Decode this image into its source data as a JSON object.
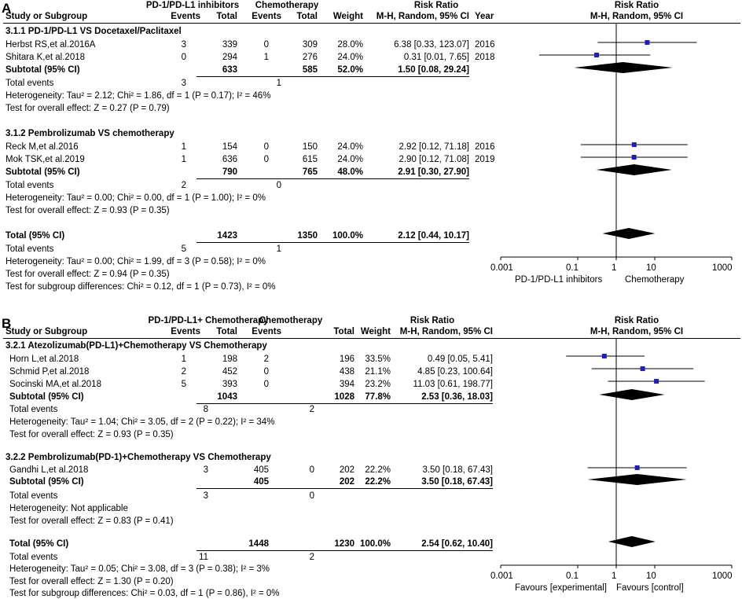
{
  "panels": [
    {
      "label": "A",
      "header": {
        "exp_group": "PD-1/PD-L1 inhibitors",
        "ctrl_group": "Chemotherapy",
        "col_study": "Study or Subgroup",
        "col_events_e": "Events",
        "col_total_e": "Total",
        "col_events_c": "Events",
        "col_total_c": "Total",
        "col_weight": "Weight",
        "rr_title": "Risk Ratio",
        "rr_method": "M-H, Random, 95% CI",
        "col_year": "Year",
        "plot_title": "Risk Ratio",
        "plot_method": "M-H, Random, 95% CI"
      },
      "subgroups": [
        {
          "title": "3.1.1 PD-1/PD-L1 VS Docetaxel/Paclitaxel",
          "studies": [
            {
              "name": "Herbst RS,et al.2016A",
              "ee": "3",
              "te": "339",
              "ec": "0",
              "tc": "309",
              "w": "28.0%",
              "ci": "6.38 [0.33, 123.07]",
              "year": "2016"
            },
            {
              "name": "Shitara K,et al.2018",
              "ee": "0",
              "te": "294",
              "ec": "1",
              "tc": "276",
              "w": "24.0%",
              "ci": "0.31 [0.01, 7.65]",
              "year": "2018"
            }
          ],
          "subtotal": {
            "label": "Subtotal (95% CI)",
            "te": "633",
            "tc": "585",
            "w": "52.0%",
            "ci": "1.50 [0.08, 29.24]"
          },
          "events": {
            "label": "Total events",
            "ee": "3",
            "ec": "1"
          },
          "het": "Heterogeneity: Tau² = 2.12; Chi² = 1.86, df = 1 (P = 0.17); I² = 46%",
          "effect": "Test for overall effect: Z = 0.27 (P = 0.79)"
        },
        {
          "title": "3.1.2 Pembrolizumab VS chemotherapy",
          "studies": [
            {
              "name": "Reck M,et al.2016",
              "ee": "1",
              "te": "154",
              "ec": "0",
              "tc": "150",
              "w": "24.0%",
              "ci": "2.92 [0.12, 71.18]",
              "year": "2016"
            },
            {
              "name": "Mok TSK,et al.2019",
              "ee": "1",
              "te": "636",
              "ec": "0",
              "tc": "615",
              "w": "24.0%",
              "ci": "2.90 [0.12, 71.08]",
              "year": "2019"
            }
          ],
          "subtotal": {
            "label": "Subtotal (95% CI)",
            "te": "790",
            "tc": "765",
            "w": "48.0%",
            "ci": "2.91 [0.30, 27.90]"
          },
          "events": {
            "label": "Total events",
            "ee": "2",
            "ec": "0"
          },
          "het": "Heterogeneity: Tau² = 0.00; Chi² = 0.00, df = 1 (P = 1.00); I² = 0%",
          "effect": "Test for overall effect: Z = 0.93 (P = 0.35)"
        }
      ],
      "total": {
        "label": "Total (95% CI)",
        "te": "1423",
        "tc": "1350",
        "w": "100.0%",
        "ci": "2.12 [0.44, 10.17]"
      },
      "total_events": {
        "label": "Total events",
        "ee": "5",
        "ec": "1"
      },
      "total_het": "Heterogeneity: Tau² = 0.00; Chi² = 1.99, df = 3 (P = 0.58); I² = 0%",
      "total_effect": "Test for overall effect: Z = 0.94 (P = 0.35)",
      "subgroup_diff": "Test for subgroup differences: Chi² = 0.12, df = 1 (P = 0.73), I² = 0%",
      "axis_left": "PD-1/PD-L1 inhibitors",
      "axis_right": "Chemotherapy"
    },
    {
      "label": "B",
      "header": {
        "exp_group": "PD-1/PD-L1+ Chemotherapy",
        "ctrl_group": "Chemotherapy",
        "col_study": "Study or Subgroup",
        "col_events_e": "Events",
        "col_total_e": "Total",
        "col_events_c": "Events",
        "col_total_c": "Total",
        "col_weight": "Weight",
        "rr_title": "Risk Ratio",
        "rr_method": "M-H, Random, 95% CI",
        "col_year": "",
        "plot_title": "Risk Ratio",
        "plot_method": "M-H, Random, 95% CI"
      },
      "subgroups": [
        {
          "title": "3.2.1 Atezolizumab(PD-L1)+Chemotherapy VS Chemotherapy",
          "studies": [
            {
              "name": "Horn L,et al.2018",
              "ee": "1",
              "te": "198",
              "ec": "2",
              "tc": "196",
              "w": "33.5%",
              "ci": "0.49 [0.05, 5.41]",
              "year": ""
            },
            {
              "name": "Schmid P,et al.2018",
              "ee": "2",
              "te": "452",
              "ec": "0",
              "tc": "438",
              "w": "21.1%",
              "ci": "4.85 [0.23, 100.64]",
              "year": ""
            },
            {
              "name": "Socinski MA,et al.2018",
              "ee": "5",
              "te": "393",
              "ec": "0",
              "tc": "394",
              "w": "23.2%",
              "ci": "11.03 [0.61, 198.77]",
              "year": ""
            }
          ],
          "subtotal": {
            "label": "Subtotal (95% CI)",
            "te": "1043",
            "tc": "1028",
            "w": "77.8%",
            "ci": "2.53 [0.36, 18.03]"
          },
          "events": {
            "label": "Total events",
            "ee": "8",
            "ec": "2"
          },
          "het": "Heterogeneity: Tau² = 1.04; Chi² = 3.05, df = 2 (P = 0.22); I² = 34%",
          "effect": "Test for overall effect: Z = 0.93 (P = 0.35)"
        },
        {
          "title": "3.2.2 Pembrolizumab(PD-1)+Chemotherapy VS Chemotherapy",
          "studies": [
            {
              "name": "Gandhi L,et al.2018",
              "ee": "3",
              "te": "405",
              "ec": "0",
              "tc": "202",
              "w": "22.2%",
              "ci": "3.50 [0.18, 67.43]",
              "year": ""
            }
          ],
          "subtotal": {
            "label": "Subtotal (95% CI)",
            "te": "405",
            "tc": "202",
            "w": "22.2%",
            "ci": "3.50 [0.18, 67.43]"
          },
          "events": {
            "label": "Total events",
            "ee": "3",
            "ec": "0"
          },
          "het": "Heterogeneity: Not applicable",
          "effect": "Test for overall effect: Z = 0.83 (P = 0.41)"
        }
      ],
      "total": {
        "label": "Total (95% CI)",
        "te": "1448",
        "tc": "1230",
        "w": "100.0%",
        "ci": "2.54 [0.62, 10.40]"
      },
      "total_events": {
        "label": "Total events",
        "ee": "11",
        "ec": "2"
      },
      "total_het": "Heterogeneity: Tau² = 0.05; Chi² = 3.08, df = 3 (P = 0.38); I² = 3%",
      "total_effect": "Test for overall effect: Z = 1.30 (P = 0.20)",
      "subgroup_diff": "Test for subgroup differences: Chi² = 0.03, df = 1 (P = 0.86), I² = 0%",
      "axis_left": "Favours [experimental]",
      "axis_right": "Favours [control]"
    }
  ],
  "chart_data": [
    {
      "type": "forest",
      "title": "A",
      "xscale": "log",
      "xlim": [
        0.001,
        1000
      ],
      "ticks": [
        "0.001",
        "0.1",
        "1",
        "10",
        "1000"
      ],
      "tick_values": [
        0.001,
        0.1,
        1,
        10,
        1000
      ],
      "studies": [
        {
          "name": "Herbst RS,et al.2016A",
          "rr": 6.38,
          "lo": 0.33,
          "hi": 123.07
        },
        {
          "name": "Shitara K,et al.2018",
          "rr": 0.31,
          "lo": 0.01,
          "hi": 7.65
        },
        {
          "name": "Reck M,et al.2016",
          "rr": 2.92,
          "lo": 0.12,
          "hi": 71.18
        },
        {
          "name": "Mok TSK,et al.2019",
          "rr": 2.9,
          "lo": 0.12,
          "hi": 71.08
        }
      ],
      "pooled": [
        {
          "name": "Subtotal 3.1.1",
          "rr": 1.5,
          "lo": 0.08,
          "hi": 29.24
        },
        {
          "name": "Subtotal 3.1.2",
          "rr": 2.91,
          "lo": 0.3,
          "hi": 27.9
        },
        {
          "name": "Total",
          "rr": 2.12,
          "lo": 0.44,
          "hi": 10.17
        }
      ]
    },
    {
      "type": "forest",
      "title": "B",
      "xscale": "log",
      "xlim": [
        0.001,
        1000
      ],
      "ticks": [
        "0.001",
        "0.1",
        "1",
        "10",
        "1000"
      ],
      "tick_values": [
        0.001,
        0.1,
        1,
        10,
        1000
      ],
      "studies": [
        {
          "name": "Horn L,et al.2018",
          "rr": 0.49,
          "lo": 0.05,
          "hi": 5.41
        },
        {
          "name": "Schmid P,et al.2018",
          "rr": 4.85,
          "lo": 0.23,
          "hi": 100.64
        },
        {
          "name": "Socinski MA,et al.2018",
          "rr": 11.03,
          "lo": 0.61,
          "hi": 198.77
        },
        {
          "name": "Gandhi L,et al.2018",
          "rr": 3.5,
          "lo": 0.18,
          "hi": 67.43
        }
      ],
      "pooled": [
        {
          "name": "Subtotal 3.2.1",
          "rr": 2.53,
          "lo": 0.36,
          "hi": 18.03
        },
        {
          "name": "Subtotal 3.2.2",
          "rr": 3.5,
          "lo": 0.18,
          "hi": 67.43
        },
        {
          "name": "Total",
          "rr": 2.54,
          "lo": 0.62,
          "hi": 10.4
        }
      ]
    }
  ]
}
